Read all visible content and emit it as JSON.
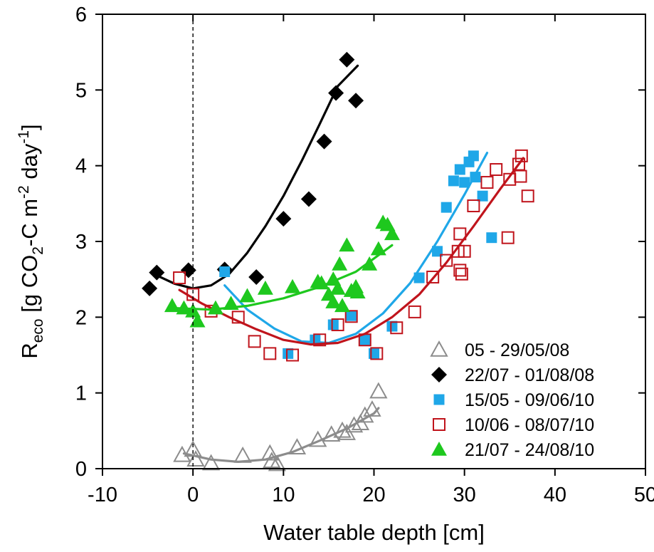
{
  "chart_data": {
    "type": "scatter",
    "xlabel": "Water table depth [cm]",
    "ylabel_parts": [
      "R",
      "eco",
      " [g CO",
      "2",
      "-C m",
      "-2",
      " day",
      "-1",
      "]"
    ],
    "xlim": [
      -10,
      50
    ],
    "ylim": [
      0,
      6
    ],
    "xticks": [
      -10,
      0,
      10,
      20,
      30,
      40,
      50
    ],
    "yticks": [
      0,
      1,
      2,
      3,
      4,
      5,
      6
    ],
    "grid": false,
    "reference_line": {
      "x": 0,
      "style": "dashed"
    },
    "legend_position": "bottom-right",
    "series": [
      {
        "name": "05 - 29/05/08",
        "marker": "triangle-open",
        "color": "#8c8c8c",
        "points": [
          [
            -1.2,
            0.18
          ],
          [
            0,
            0.25
          ],
          [
            0.3,
            0.12
          ],
          [
            2,
            0.07
          ],
          [
            5.5,
            0.17
          ],
          [
            8.5,
            0.2
          ],
          [
            8.7,
            0.1
          ],
          [
            9.3,
            0.06
          ],
          [
            11.5,
            0.28
          ],
          [
            13.8,
            0.38
          ],
          [
            15.3,
            0.45
          ],
          [
            16.5,
            0.5
          ],
          [
            17,
            0.47
          ],
          [
            17.8,
            0.57
          ],
          [
            18.5,
            0.6
          ],
          [
            19,
            0.7
          ],
          [
            19.8,
            0.78
          ],
          [
            20.5,
            1.02
          ]
        ],
        "fit": [
          [
            -1,
            0.2
          ],
          [
            2,
            0.12
          ],
          [
            5,
            0.09
          ],
          [
            8,
            0.12
          ],
          [
            11,
            0.22
          ],
          [
            14,
            0.37
          ],
          [
            17,
            0.53
          ],
          [
            20,
            0.73
          ],
          [
            20.5,
            0.8
          ]
        ]
      },
      {
        "name": "22/07 - 01/08/08",
        "marker": "diamond-filled",
        "color": "#000000",
        "points": [
          [
            -4.8,
            2.38
          ],
          [
            -4,
            2.59
          ],
          [
            -0.5,
            2.62
          ],
          [
            3.5,
            2.63
          ],
          [
            7,
            2.53
          ],
          [
            10,
            3.3
          ],
          [
            12.8,
            3.56
          ],
          [
            14.5,
            4.32
          ],
          [
            15.8,
            4.96
          ],
          [
            17,
            5.4
          ],
          [
            18,
            4.86
          ]
        ],
        "fit": [
          [
            -4.5,
            2.58
          ],
          [
            -2,
            2.44
          ],
          [
            0,
            2.38
          ],
          [
            2,
            2.42
          ],
          [
            4,
            2.57
          ],
          [
            6,
            2.85
          ],
          [
            8,
            3.2
          ],
          [
            10,
            3.6
          ],
          [
            12,
            4.06
          ],
          [
            14,
            4.55
          ],
          [
            16,
            5.05
          ],
          [
            18.2,
            5.32
          ]
        ]
      },
      {
        "name": "15/05 - 09/06/10",
        "marker": "square-filled",
        "color": "#1fa7e8",
        "points": [
          [
            3.5,
            2.6
          ],
          [
            10.5,
            1.52
          ],
          [
            13.5,
            1.7
          ],
          [
            15.5,
            1.9
          ],
          [
            17.5,
            2.02
          ],
          [
            19,
            1.7
          ],
          [
            20,
            1.52
          ],
          [
            22,
            1.88
          ],
          [
            25,
            2.52
          ],
          [
            27,
            2.87
          ],
          [
            28,
            3.45
          ],
          [
            28.8,
            3.8
          ],
          [
            29.5,
            3.95
          ],
          [
            30,
            3.78
          ],
          [
            30.5,
            4.05
          ],
          [
            31,
            4.13
          ],
          [
            31.2,
            3.85
          ],
          [
            32,
            3.6
          ],
          [
            33,
            3.05
          ]
        ],
        "fit": [
          [
            3.5,
            2.42
          ],
          [
            6,
            2.1
          ],
          [
            9,
            1.85
          ],
          [
            12,
            1.68
          ],
          [
            15,
            1.66
          ],
          [
            18,
            1.78
          ],
          [
            21,
            2.05
          ],
          [
            24,
            2.45
          ],
          [
            27,
            3
          ],
          [
            30,
            3.62
          ],
          [
            32.5,
            4.17
          ]
        ]
      },
      {
        "name": "10/06 - 08/07/10",
        "marker": "square-open",
        "color": "#c0141c",
        "points": [
          [
            -1.5,
            2.52
          ],
          [
            0,
            2.3
          ],
          [
            2,
            2.08
          ],
          [
            5,
            2
          ],
          [
            6.8,
            1.68
          ],
          [
            8.5,
            1.52
          ],
          [
            11,
            1.5
          ],
          [
            14,
            1.7
          ],
          [
            16,
            1.9
          ],
          [
            17.5,
            2.01
          ],
          [
            19,
            1.7
          ],
          [
            20.3,
            1.52
          ],
          [
            22.5,
            1.86
          ],
          [
            24.5,
            2.07
          ],
          [
            26.5,
            2.53
          ],
          [
            28,
            2.75
          ],
          [
            29.3,
            2.87
          ],
          [
            29.5,
            3.1
          ],
          [
            29.5,
            2.62
          ],
          [
            29.7,
            2.57
          ],
          [
            30,
            2.87
          ],
          [
            31,
            3.47
          ],
          [
            32.5,
            3.78
          ],
          [
            33.5,
            3.95
          ],
          [
            34.8,
            3.05
          ],
          [
            35,
            3.82
          ],
          [
            36,
            4.02
          ],
          [
            36.2,
            3.86
          ],
          [
            36.3,
            4.13
          ],
          [
            37,
            3.6
          ]
        ],
        "fit": [
          [
            -1.5,
            2.36
          ],
          [
            1,
            2.18
          ],
          [
            4,
            2
          ],
          [
            7,
            1.84
          ],
          [
            10,
            1.7
          ],
          [
            13,
            1.64
          ],
          [
            16,
            1.66
          ],
          [
            19,
            1.78
          ],
          [
            22,
            2
          ],
          [
            25,
            2.3
          ],
          [
            28,
            2.72
          ],
          [
            31,
            3.2
          ],
          [
            34,
            3.7
          ],
          [
            36.5,
            4.1
          ]
        ]
      },
      {
        "name": "21/07 - 24/08/10",
        "marker": "triangle-filled",
        "color": "#1ec81e",
        "points": [
          [
            -2.3,
            2.15
          ],
          [
            0,
            2.08
          ],
          [
            -1,
            2.12
          ],
          [
            0.5,
            1.95
          ],
          [
            2.5,
            2.12
          ],
          [
            4.2,
            2.18
          ],
          [
            6,
            2.28
          ],
          [
            8,
            2.38
          ],
          [
            11,
            2.4
          ],
          [
            13.8,
            2.47
          ],
          [
            14.2,
            2.45
          ],
          [
            15,
            2.3
          ],
          [
            15.5,
            2.5
          ],
          [
            15.5,
            2.2
          ],
          [
            16,
            2.38
          ],
          [
            16.2,
            2.7
          ],
          [
            16.5,
            2.15
          ],
          [
            17,
            2.95
          ],
          [
            17.5,
            2.35
          ],
          [
            18,
            2.4
          ],
          [
            18.2,
            2.33
          ],
          [
            19.5,
            2.7
          ],
          [
            20.5,
            2.9
          ],
          [
            21,
            3.25
          ],
          [
            21.5,
            3.22
          ],
          [
            22,
            3.1
          ]
        ],
        "fit": [
          [
            -2,
            2.12
          ],
          [
            2,
            2.1
          ],
          [
            6,
            2.15
          ],
          [
            10,
            2.25
          ],
          [
            14,
            2.4
          ],
          [
            18,
            2.6
          ],
          [
            22,
            2.95
          ]
        ]
      }
    ]
  }
}
